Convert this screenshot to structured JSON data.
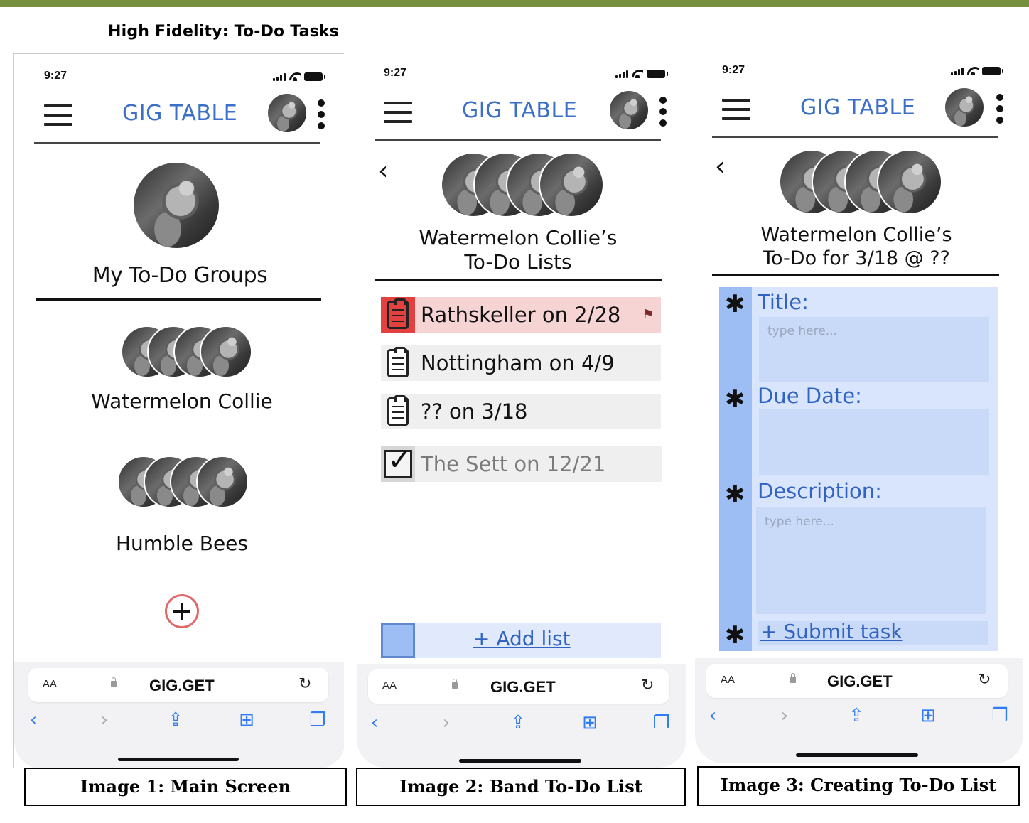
{
  "heading": "High Fidelity: To-Do Tasks",
  "common": {
    "status_time": "9:27",
    "app_title": "GIG TABLE",
    "url_aa": "AA",
    "url": "GIG.GET"
  },
  "screen1": {
    "section_title": "My To-Do Groups",
    "groups": [
      {
        "name": "Watermelon Collie"
      },
      {
        "name": "Humble Bees"
      }
    ],
    "add_icon": "plus-circle-icon",
    "caption": "Image 1: Main Screen"
  },
  "screen2": {
    "title_line1": "Watermelon Collie’s",
    "title_line2": "To-Do Lists",
    "lists": [
      {
        "label": "Rathskeller on 2/28",
        "state": "flagged",
        "color": "#f7d4d4"
      },
      {
        "label": "Nottingham on 4/9",
        "state": "open"
      },
      {
        "label": "?? on 3/18",
        "state": "open"
      },
      {
        "label": "The Sett on 12/21",
        "state": "done"
      }
    ],
    "add_list": "+ Add list",
    "caption": "Image 2: Band To-Do List"
  },
  "screen3": {
    "title_line1": "Watermelon Collie’s",
    "title_line2": "To-Do for 3/18 @ ??",
    "fields": {
      "title_label": "Title:",
      "title_placeholder": "type here...",
      "due_label": "Due Date:",
      "desc_label": "Description:",
      "desc_placeholder": "type here..."
    },
    "submit": "+ Submit task",
    "caption": "Image 3: Creating To-Do List"
  },
  "colors": {
    "accent_blue": "#3b6fc8",
    "header_bar": "#76903f",
    "add_circle": "#e06a6a"
  }
}
